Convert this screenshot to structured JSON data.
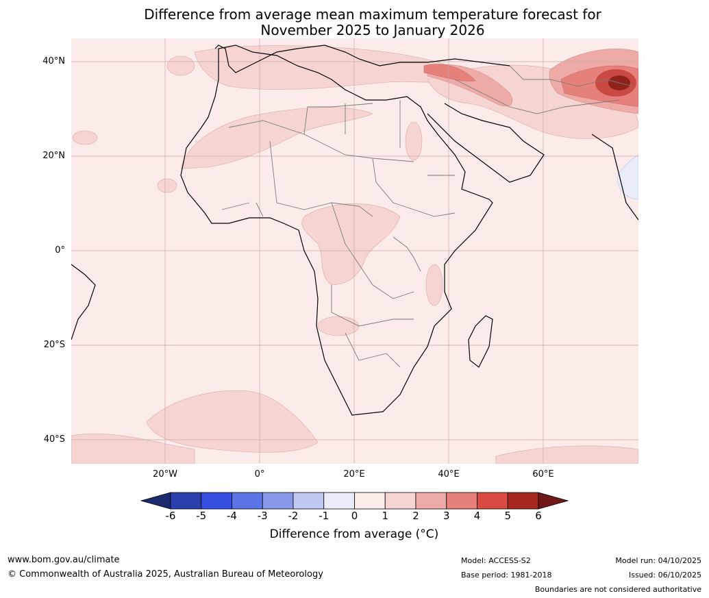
{
  "title": {
    "line1": "Difference from average mean maximum temperature forecast for",
    "line2": "November 2025 to January 2026"
  },
  "axes": {
    "lat_labels": [
      "40°N",
      "20°N",
      "0°",
      "20°S",
      "40°S"
    ],
    "lon_labels": [
      "20°W",
      "0°",
      "20°E",
      "40°E",
      "60°E"
    ]
  },
  "colorbar": {
    "title": "Difference from average (°C)",
    "ticks": [
      "-6",
      "-5",
      "-4",
      "-3",
      "-2",
      "-1",
      "0",
      "1",
      "2",
      "3",
      "4",
      "5",
      "6"
    ],
    "colors": {
      "below_min": "#1a2a6c",
      "bins": [
        "#2a3fae",
        "#3550e0",
        "#5b74e6",
        "#8899ea",
        "#c0c9f3",
        "#e9ecfb",
        "#fbebe9",
        "#f6d4d2",
        "#edaaa7",
        "#e5807b",
        "#d84a40",
        "#a6281f"
      ],
      "above_max": "#701818"
    }
  },
  "map": {
    "ocean_color": "#fbebe9",
    "land_base": "#fbebe9",
    "warm_1_2": "#f6d4d2",
    "warm_2_3": "#edaaa7",
    "warm_3_4": "#e5807b",
    "warm_4_5": "#c94a42",
    "warm_5_6": "#8f2219",
    "cool_anomaly": "#e9ecfb"
  },
  "footer": {
    "website": "www.bom.gov.au/climate",
    "copyright": "© Commonwealth of Australia 2025, Australian Bureau of Meteorology",
    "model": "Model: ACCESS-S2",
    "base_period": "Base period: 1981-2018",
    "model_run": "Model run: 04/10/2025",
    "issued": "Issued: 06/10/2025",
    "disclaimer": "Boundaries are not considered authoritative"
  }
}
